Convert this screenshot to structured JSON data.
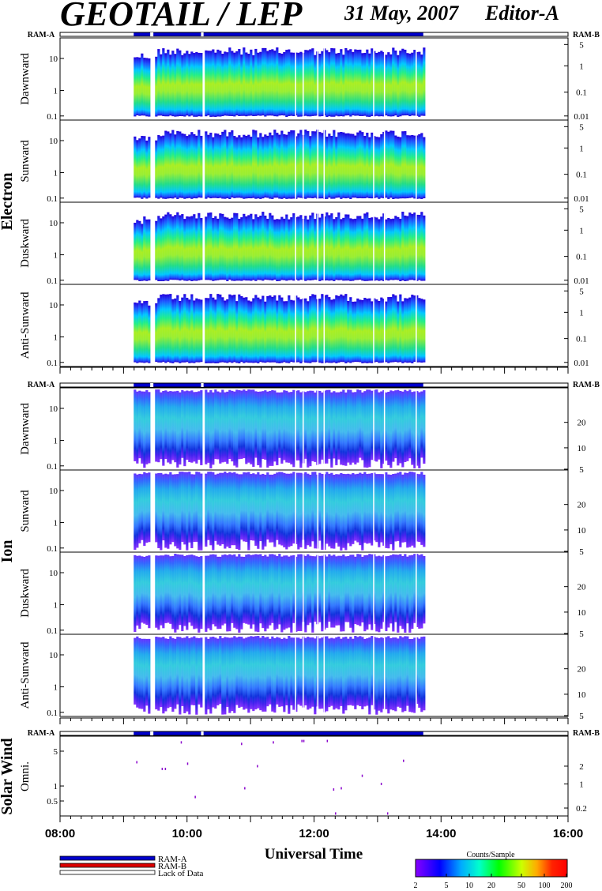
{
  "header": {
    "title": "GEOTAIL / LEP",
    "date": "31 May, 2007",
    "editor": "Editor-A"
  },
  "xaxis": {
    "label": "Universal Time",
    "ticks": [
      "08:00",
      "10:00",
      "12:00",
      "14:00",
      "16:00"
    ],
    "range_hours": [
      8,
      16
    ]
  },
  "legend": {
    "items": [
      {
        "label": "RAM-A",
        "color": "#0000cc"
      },
      {
        "label": "RAM-B",
        "color": "#dd0000"
      },
      {
        "label": "Lack of Data",
        "color": "#ffffff"
      }
    ]
  },
  "colorbar": {
    "title": "Counts/Sample",
    "ticks": [
      "2",
      "5",
      "10",
      "20",
      "50",
      "100",
      "200"
    ]
  },
  "chart_data": [
    {
      "type": "heatmap",
      "species": "Electron",
      "ram_a_label": "RAM-A",
      "ram_b_label": "RAM-B",
      "ram_a_coverage_hours": [
        9.16,
        13.72
      ],
      "data_gaps_hours": [
        [
          9.42,
          9.47
        ],
        [
          10.22,
          10.26
        ]
      ],
      "panels": [
        {
          "label": "Dawnward",
          "left_ticks": [
            "10",
            "1",
            "0.1"
          ],
          "right_ticks": [
            "5",
            "1",
            "0.1",
            "0.01"
          ]
        },
        {
          "label": "Sunward",
          "left_ticks": [
            "10",
            "1",
            "0.1"
          ],
          "right_ticks": [
            "5",
            "1",
            "0.1",
            "0.01"
          ]
        },
        {
          "label": "Duskward",
          "left_ticks": [
            "10",
            "1",
            "0.1"
          ],
          "right_ticks": [
            "5",
            "1",
            "0.1",
            "0.01"
          ]
        },
        {
          "label": "Anti-Sunward",
          "left_ticks": [
            "10",
            "1",
            "0.1"
          ],
          "right_ticks": [
            "5",
            "1",
            "0.1",
            "0.01"
          ]
        }
      ]
    },
    {
      "type": "heatmap",
      "species": "Ion",
      "ram_a_label": "RAM-A",
      "ram_b_label": "RAM-B",
      "ram_a_coverage_hours": [
        9.16,
        13.72
      ],
      "data_gaps_hours": [
        [
          9.42,
          9.47
        ],
        [
          10.22,
          10.26
        ]
      ],
      "panels": [
        {
          "label": "Dawnward",
          "left_ticks": [
            "10",
            "1",
            "0.1"
          ],
          "right_ticks": [
            "20",
            "10",
            "5"
          ]
        },
        {
          "label": "Sunward",
          "left_ticks": [
            "10",
            "1",
            "0.1"
          ],
          "right_ticks": [
            "20",
            "10",
            "5"
          ]
        },
        {
          "label": "Duskward",
          "left_ticks": [
            "10",
            "1",
            "0.1"
          ],
          "right_ticks": [
            "20",
            "10",
            "5"
          ]
        },
        {
          "label": "Anti-Sunward",
          "left_ticks": [
            "10",
            "1",
            "0.1"
          ],
          "right_ticks": [
            "20",
            "10",
            "5"
          ]
        }
      ]
    },
    {
      "type": "scatter",
      "species": "Solar Wind",
      "panel_label": "Omni.",
      "ram_a_label": "RAM-A",
      "ram_b_label": "RAM-B",
      "left_ticks": [
        "5",
        "1",
        "0.5"
      ],
      "right_ticks": [
        "2",
        "1",
        "0.2"
      ],
      "ylim": [
        0.25,
        10
      ],
      "points": [
        {
          "x": 9.2,
          "y": 3.0
        },
        {
          "x": 9.6,
          "y": 2.2
        },
        {
          "x": 9.65,
          "y": 2.2
        },
        {
          "x": 9.9,
          "y": 7.5
        },
        {
          "x": 10.0,
          "y": 2.8
        },
        {
          "x": 10.12,
          "y": 0.6
        },
        {
          "x": 10.85,
          "y": 7.0
        },
        {
          "x": 10.9,
          "y": 0.9
        },
        {
          "x": 11.1,
          "y": 2.5
        },
        {
          "x": 11.35,
          "y": 7.5
        },
        {
          "x": 11.8,
          "y": 8.0
        },
        {
          "x": 11.83,
          "y": 8.0
        },
        {
          "x": 12.2,
          "y": 8.0
        },
        {
          "x": 12.3,
          "y": 0.85
        },
        {
          "x": 12.33,
          "y": 0.28
        },
        {
          "x": 12.42,
          "y": 0.9
        },
        {
          "x": 12.75,
          "y": 1.6
        },
        {
          "x": 13.05,
          "y": 1.1
        },
        {
          "x": 13.15,
          "y": 0.28
        },
        {
          "x": 13.4,
          "y": 3.2
        }
      ]
    }
  ]
}
